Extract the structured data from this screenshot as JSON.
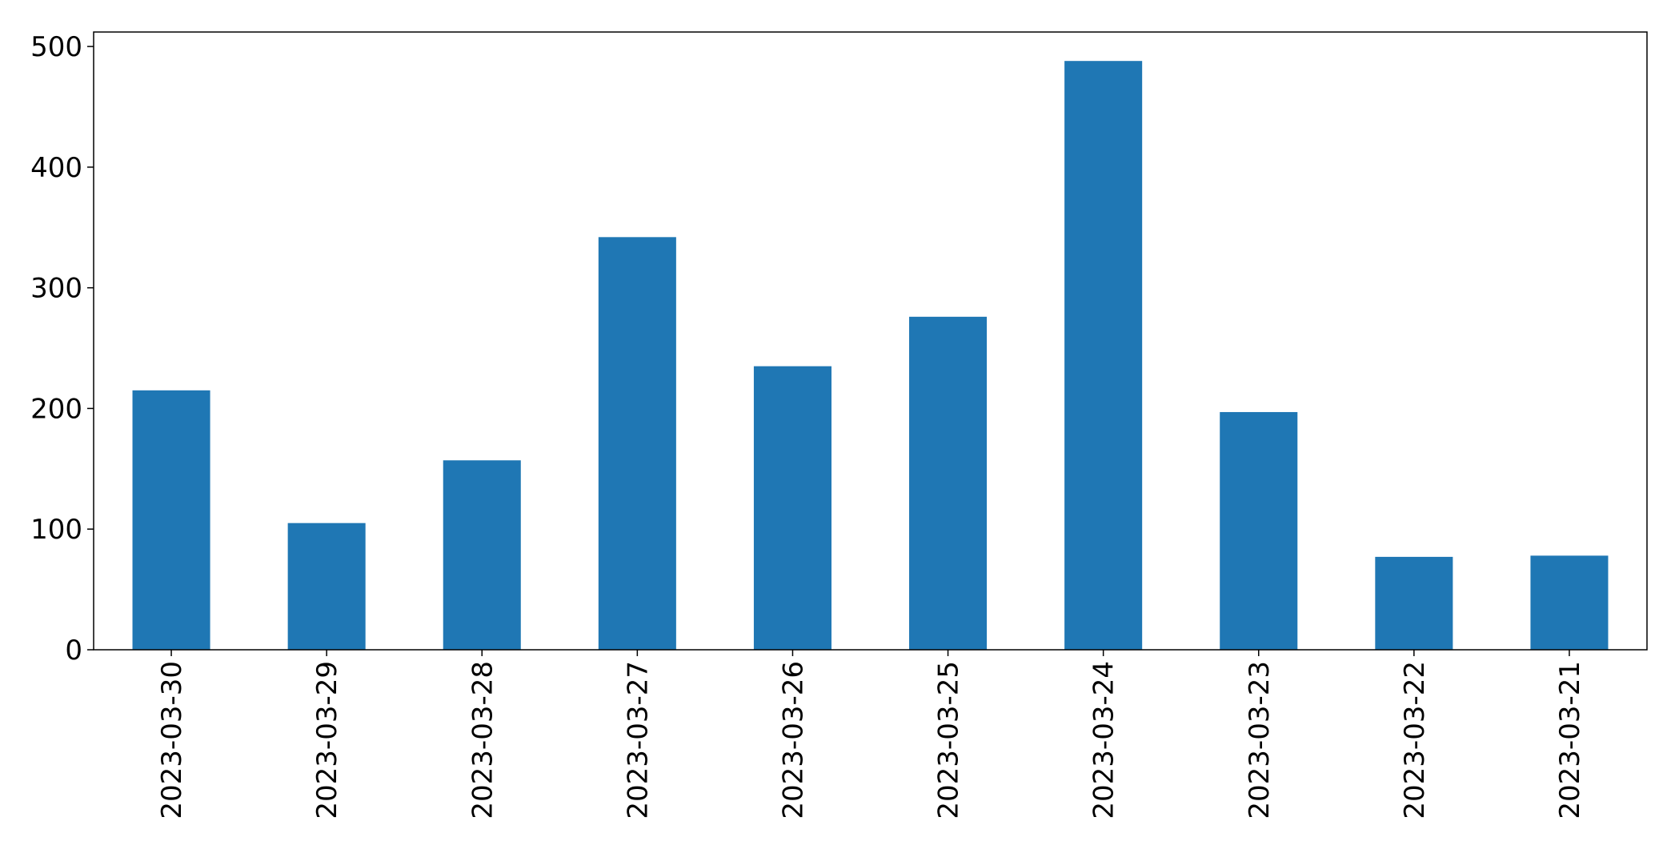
{
  "chart_data": {
    "type": "bar",
    "categories": [
      "2023-03-30",
      "2023-03-29",
      "2023-03-28",
      "2023-03-27",
      "2023-03-26",
      "2023-03-25",
      "2023-03-24",
      "2023-03-23",
      "2023-03-22",
      "2023-03-21"
    ],
    "values": [
      215,
      105,
      157,
      342,
      235,
      276,
      488,
      197,
      77,
      78
    ],
    "ylim": [
      0,
      512
    ],
    "yticks": [
      0,
      100,
      200,
      300,
      400,
      500
    ],
    "grid": false,
    "bar_color": "#1f77b4",
    "title": "",
    "xlabel": "",
    "ylabel": ""
  }
}
